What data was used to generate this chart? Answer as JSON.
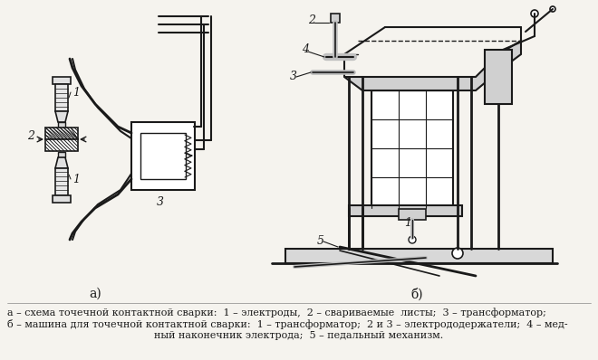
{
  "bg_color": "#f5f3ee",
  "line_color": "#1a1a1a",
  "text_color": "#1a1a1a",
  "label_a": "а)",
  "label_b": "б)",
  "caption_line1": "а – схема точечной контактной сварки:  1 – электроды,  2 – свариваемые  листы;  3 – трансформатор;",
  "caption_line2": "б – машина для точечной контактной сварки:  1 – трансформатор;  2 и 3 – электрододержатели;  4 – мед-",
  "caption_line3": "ный наконечник электрода;  5 – педальный механизм."
}
